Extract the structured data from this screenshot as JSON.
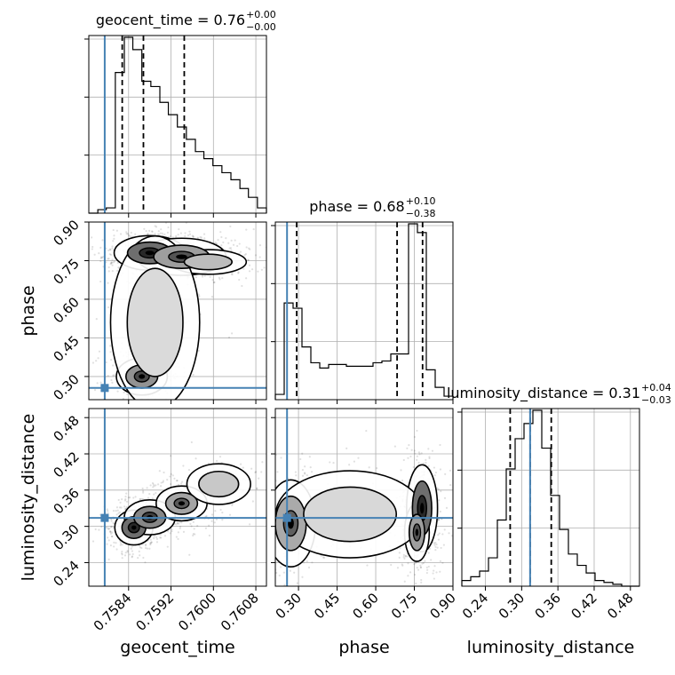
{
  "chart_data": {
    "type": "corner",
    "parameters": [
      "geocent_time",
      "phase",
      "luminosity_distance"
    ],
    "truths": {
      "geocent_time": 0.75795,
      "phase": 0.2555,
      "luminosity_distance": 0.314
    },
    "truth_color": "#4682b4",
    "ranges": {
      "geocent_time": [
        0.75765,
        0.761
      ],
      "phase": [
        0.21,
        0.9
      ],
      "luminosity_distance": [
        0.201,
        0.495
      ]
    },
    "ticks": {
      "geocent_time": [
        0.7584,
        0.7592,
        0.76,
        0.7608
      ],
      "phase": [
        0.3,
        0.45,
        0.6,
        0.75,
        0.9
      ],
      "luminosity_distance": [
        0.24,
        0.3,
        0.36,
        0.42,
        0.48
      ]
    },
    "tick_labels": {
      "geocent_time": [
        "0.7584",
        "0.7592",
        "0.7600",
        "0.7608"
      ],
      "phase": [
        "0.30",
        "0.45",
        "0.60",
        "0.75",
        "0.90"
      ],
      "luminosity_distance": [
        "0.24",
        "0.30",
        "0.36",
        "0.42",
        "0.48"
      ]
    },
    "axis_labels": {
      "geocent_time": "geocent_time",
      "phase": "phase",
      "luminosity_distance": "luminosity_distance"
    },
    "titles": [
      {
        "param": "geocent_time",
        "text": "geocent_time = 0.76",
        "sup": "+0.00",
        "sub": "−0.00"
      },
      {
        "param": "phase",
        "text": "phase = 0.68",
        "sup": "+0.10",
        "sub": "−0.38"
      },
      {
        "param": "luminosity_distance",
        "text": "luminosity_distance = 0.31",
        "sup": "+0.04",
        "sub": "−0.03"
      }
    ],
    "quantiles": {
      "geocent_time": [
        0.75828,
        0.75868,
        0.75945
      ],
      "phase": [
        0.293,
        0.683,
        0.782
      ],
      "luminosity_distance": [
        0.281,
        0.314,
        0.349
      ]
    },
    "histograms": {
      "geocent_time": {
        "edges": [
          0.75765,
          0.75782,
          0.75798,
          0.75815,
          0.75832,
          0.75848,
          0.75865,
          0.75882,
          0.75899,
          0.75915,
          0.75932,
          0.75949,
          0.75966,
          0.75982,
          0.75999,
          0.76016,
          0.76033,
          0.7605,
          0.76066,
          0.76083,
          0.761
        ],
        "counts": [
          0,
          2,
          3,
          80,
          100,
          93,
          75,
          72,
          63,
          56,
          49,
          42,
          35,
          31,
          27,
          23,
          19,
          14,
          9,
          3
        ]
      },
      "phase": {
        "edges": [
          0.21,
          0.2445,
          0.279,
          0.3135,
          0.348,
          0.3825,
          0.417,
          0.4515,
          0.486,
          0.5205,
          0.555,
          0.5895,
          0.624,
          0.6585,
          0.7275,
          0.762,
          0.7965,
          0.831,
          0.8655,
          0.9
        ],
        "counts": [
          3,
          55,
          52,
          30,
          21,
          18,
          20,
          20,
          19,
          19,
          19,
          21,
          22,
          26,
          100,
          95,
          17,
          7,
          2
        ]
      },
      "luminosity_distance": {
        "edges": [
          0.201,
          0.2157,
          0.2304,
          0.2451,
          0.2598,
          0.2745,
          0.2892,
          0.3039,
          0.3186,
          0.3333,
          0.348,
          0.3627,
          0.3774,
          0.3921,
          0.4068,
          0.4215,
          0.4362,
          0.4509,
          0.4656,
          0.4803,
          0.495
        ],
        "counts": [
          3,
          5,
          8,
          15,
          35,
          62,
          78,
          86,
          93,
          73,
          48,
          30,
          17,
          11,
          7,
          3,
          2,
          1,
          0,
          0
        ]
      }
    },
    "density_blobs": {
      "phase_vs_geocent_time": [
        {
          "x": 0.7588,
          "y": 0.78,
          "dx": 0.00028,
          "dy": 0.028,
          "w": 1.0
        },
        {
          "x": 0.7594,
          "y": 0.765,
          "dx": 0.00035,
          "dy": 0.03,
          "w": 0.6
        },
        {
          "x": 0.7599,
          "y": 0.745,
          "dx": 0.0003,
          "dy": 0.02,
          "w": 0.35
        },
        {
          "x": 0.75865,
          "y": 0.3,
          "dx": 0.0002,
          "dy": 0.03,
          "w": 0.7
        },
        {
          "x": 0.7589,
          "y": 0.51,
          "dx": 0.00035,
          "dy": 0.14,
          "w": 0.1
        }
      ],
      "luminosity_distance_vs_geocent_time": [
        {
          "x": 0.7585,
          "y": 0.298,
          "dx": 0.00015,
          "dy": 0.012,
          "w": 1.0
        },
        {
          "x": 0.7588,
          "y": 0.315,
          "dx": 0.0002,
          "dy": 0.012,
          "w": 0.8
        },
        {
          "x": 0.7594,
          "y": 0.338,
          "dx": 0.0002,
          "dy": 0.012,
          "w": 0.55
        },
        {
          "x": 0.7601,
          "y": 0.37,
          "dx": 0.00025,
          "dy": 0.014,
          "w": 0.25
        }
      ],
      "luminosity_distance_vs_phase": [
        {
          "x": 0.78,
          "y": 0.33,
          "dx": 0.025,
          "dy": 0.03,
          "w": 1.0
        },
        {
          "x": 0.76,
          "y": 0.29,
          "dx": 0.02,
          "dy": 0.02,
          "w": 0.6
        },
        {
          "x": 0.27,
          "y": 0.305,
          "dx": 0.04,
          "dy": 0.03,
          "w": 0.5
        },
        {
          "x": 0.5,
          "y": 0.32,
          "dx": 0.12,
          "dy": 0.03,
          "w": 0.12
        }
      ]
    },
    "grid": true
  }
}
